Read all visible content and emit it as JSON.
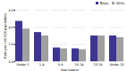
{
  "chart_data": {
    "type": "bar",
    "categories": [
      "Under 1",
      "1-4",
      "5-9",
      "10-14",
      "15-19",
      "Under 20"
    ],
    "series": [
      {
        "name": "Boys",
        "color": "#3d3591",
        "values": [
          4.7,
          3.4,
          1.6,
          1.5,
          3.0,
          3.0
        ]
      },
      {
        "name": "Girls",
        "color": "#a0a0a0",
        "values": [
          3.8,
          3.0,
          1.5,
          1.4,
          3.0,
          2.8
        ]
      }
    ],
    "xlabel": "Age (years)",
    "ylabel": "Rate per 100 000 population",
    "ylim": [
      0,
      6
    ],
    "yticks": [
      0,
      2,
      4,
      6
    ],
    "grid": true,
    "legend": "upper right"
  }
}
